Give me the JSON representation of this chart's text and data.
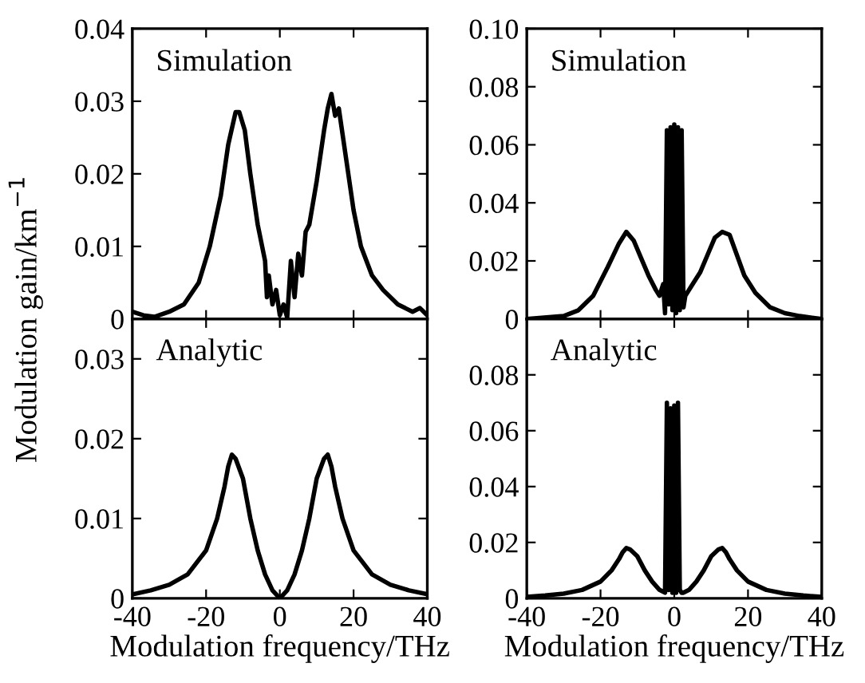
{
  "chart_data": [
    {
      "type": "line",
      "ylabel": "Modulation gain/km$^{−1}$",
      "annotations": [
        "Simulation"
      ],
      "xlim": [
        -40,
        40
      ],
      "xticks": [
        -40,
        -20,
        0,
        20,
        40
      ],
      "ylim": [
        0,
        0.04
      ],
      "yticks": [
        0,
        0.01,
        0.02,
        0.03,
        0.04
      ],
      "tick_labels": "y",
      "series": [
        {
          "color": "#000000",
          "x": [
            -40,
            -37,
            -34,
            -30,
            -26,
            -22,
            -19,
            -16,
            -14,
            -12,
            -11,
            -9.5,
            -8,
            -6,
            -4,
            -3.5,
            -3,
            -2,
            -1,
            0,
            1,
            2,
            3,
            4,
            5,
            6,
            7,
            8,
            10,
            12,
            13,
            14,
            15,
            16,
            18,
            20,
            22,
            25,
            28,
            32,
            36,
            38,
            40
          ],
          "values": [
            0.001,
            0.0005,
            0.0003,
            0.001,
            0.002,
            0.005,
            0.01,
            0.017,
            0.024,
            0.0285,
            0.0285,
            0.026,
            0.02,
            0.013,
            0.008,
            0.003,
            0.006,
            0.002,
            0.004,
            0.0005,
            0.002,
            0.0002,
            0.008,
            0.003,
            0.009,
            0.006,
            0.012,
            0.013,
            0.019,
            0.026,
            0.029,
            0.031,
            0.028,
            0.029,
            0.022,
            0.015,
            0.01,
            0.006,
            0.004,
            0.002,
            0.001,
            0.0015,
            0.0005
          ]
        }
      ]
    },
    {
      "type": "line",
      "annotations": [
        "Simulation"
      ],
      "xlim": [
        -40,
        40
      ],
      "xticks": [
        -40,
        -20,
        0,
        20,
        40
      ],
      "ylim": [
        0,
        0.1
      ],
      "yticks": [
        0,
        0.02,
        0.04,
        0.06,
        0.08,
        {
          "value": 0.1,
          "label": "0.10"
        }
      ],
      "tick_labels": "y",
      "series": [
        {
          "color": "#000000",
          "x": [
            -40,
            -30,
            -26,
            -22,
            -18,
            -15,
            -13,
            -11,
            -9,
            -7,
            -5,
            -4,
            -3,
            -2.5,
            -2,
            -1.5,
            -1,
            -0.5,
            0,
            0.5,
            1,
            1.5,
            2,
            2.5,
            3,
            5,
            7,
            9,
            11,
            13,
            15,
            17,
            19,
            22,
            26,
            30,
            34,
            40
          ],
          "values": [
            0,
            0.001,
            0.003,
            0.008,
            0.018,
            0.026,
            0.03,
            0.027,
            0.021,
            0.015,
            0.01,
            0.008,
            0.012,
            0.002,
            0.065,
            0.005,
            0.066,
            0.003,
            0.067,
            0.002,
            0.066,
            0.003,
            0.065,
            0.004,
            0.008,
            0.012,
            0.016,
            0.022,
            0.028,
            0.03,
            0.029,
            0.022,
            0.015,
            0.009,
            0.004,
            0.002,
            0.001,
            0
          ]
        }
      ]
    },
    {
      "type": "line",
      "xlabel": "Modulation frequency/THz",
      "annotations": [
        "Analytic"
      ],
      "xlim": [
        -40,
        40
      ],
      "xticks": [
        -40,
        -20,
        0,
        20,
        40
      ],
      "ylim": [
        0,
        0.035
      ],
      "yticks": [
        0,
        0.01,
        0.02,
        0.03
      ],
      "series": [
        {
          "color": "#000000",
          "x": [
            -40,
            -35,
            -30,
            -25,
            -20,
            -17,
            -15,
            -14,
            -13,
            -12,
            -10,
            -8,
            -6,
            -4,
            -2,
            0,
            2,
            4,
            6,
            8,
            10,
            12,
            13,
            14,
            15,
            17,
            20,
            25,
            30,
            35,
            40
          ],
          "values": [
            0.0005,
            0.001,
            0.0017,
            0.003,
            0.006,
            0.01,
            0.014,
            0.0165,
            0.018,
            0.0175,
            0.015,
            0.01,
            0.006,
            0.003,
            0.001,
            0,
            0.001,
            0.003,
            0.006,
            0.01,
            0.015,
            0.0175,
            0.018,
            0.0165,
            0.014,
            0.01,
            0.006,
            0.003,
            0.0017,
            0.001,
            0.0005
          ]
        }
      ]
    },
    {
      "type": "line",
      "xlabel": "Modulation frequency/THz",
      "annotations": [
        "Analytic"
      ],
      "xlim": [
        -40,
        40
      ],
      "xticks": [
        -40,
        -20,
        0,
        20,
        40
      ],
      "ylim": [
        0,
        0.1
      ],
      "yticks": [
        0,
        0.02,
        0.04,
        0.06,
        0.08
      ],
      "series": [
        {
          "color": "#000000",
          "x": [
            -40,
            -35,
            -30,
            -25,
            -20,
            -17,
            -15,
            -14,
            -13,
            -12,
            -10,
            -8,
            -6,
            -4,
            -2.5,
            -2,
            -1.5,
            -1,
            -0.5,
            0,
            0.5,
            1,
            1.5,
            2,
            2.5,
            4,
            6,
            8,
            10,
            12,
            13,
            14,
            15,
            17,
            20,
            25,
            30,
            35,
            40
          ],
          "values": [
            0.0005,
            0.001,
            0.0017,
            0.003,
            0.006,
            0.01,
            0.014,
            0.0165,
            0.018,
            0.0175,
            0.015,
            0.01,
            0.006,
            0.003,
            0.002,
            0.07,
            0.003,
            0.068,
            0.002,
            0.069,
            0.002,
            0.07,
            0.003,
            0.002,
            0.002,
            0.003,
            0.006,
            0.01,
            0.015,
            0.0175,
            0.018,
            0.0165,
            0.014,
            0.01,
            0.006,
            0.003,
            0.0017,
            0.001,
            0.0005
          ]
        }
      ]
    }
  ]
}
